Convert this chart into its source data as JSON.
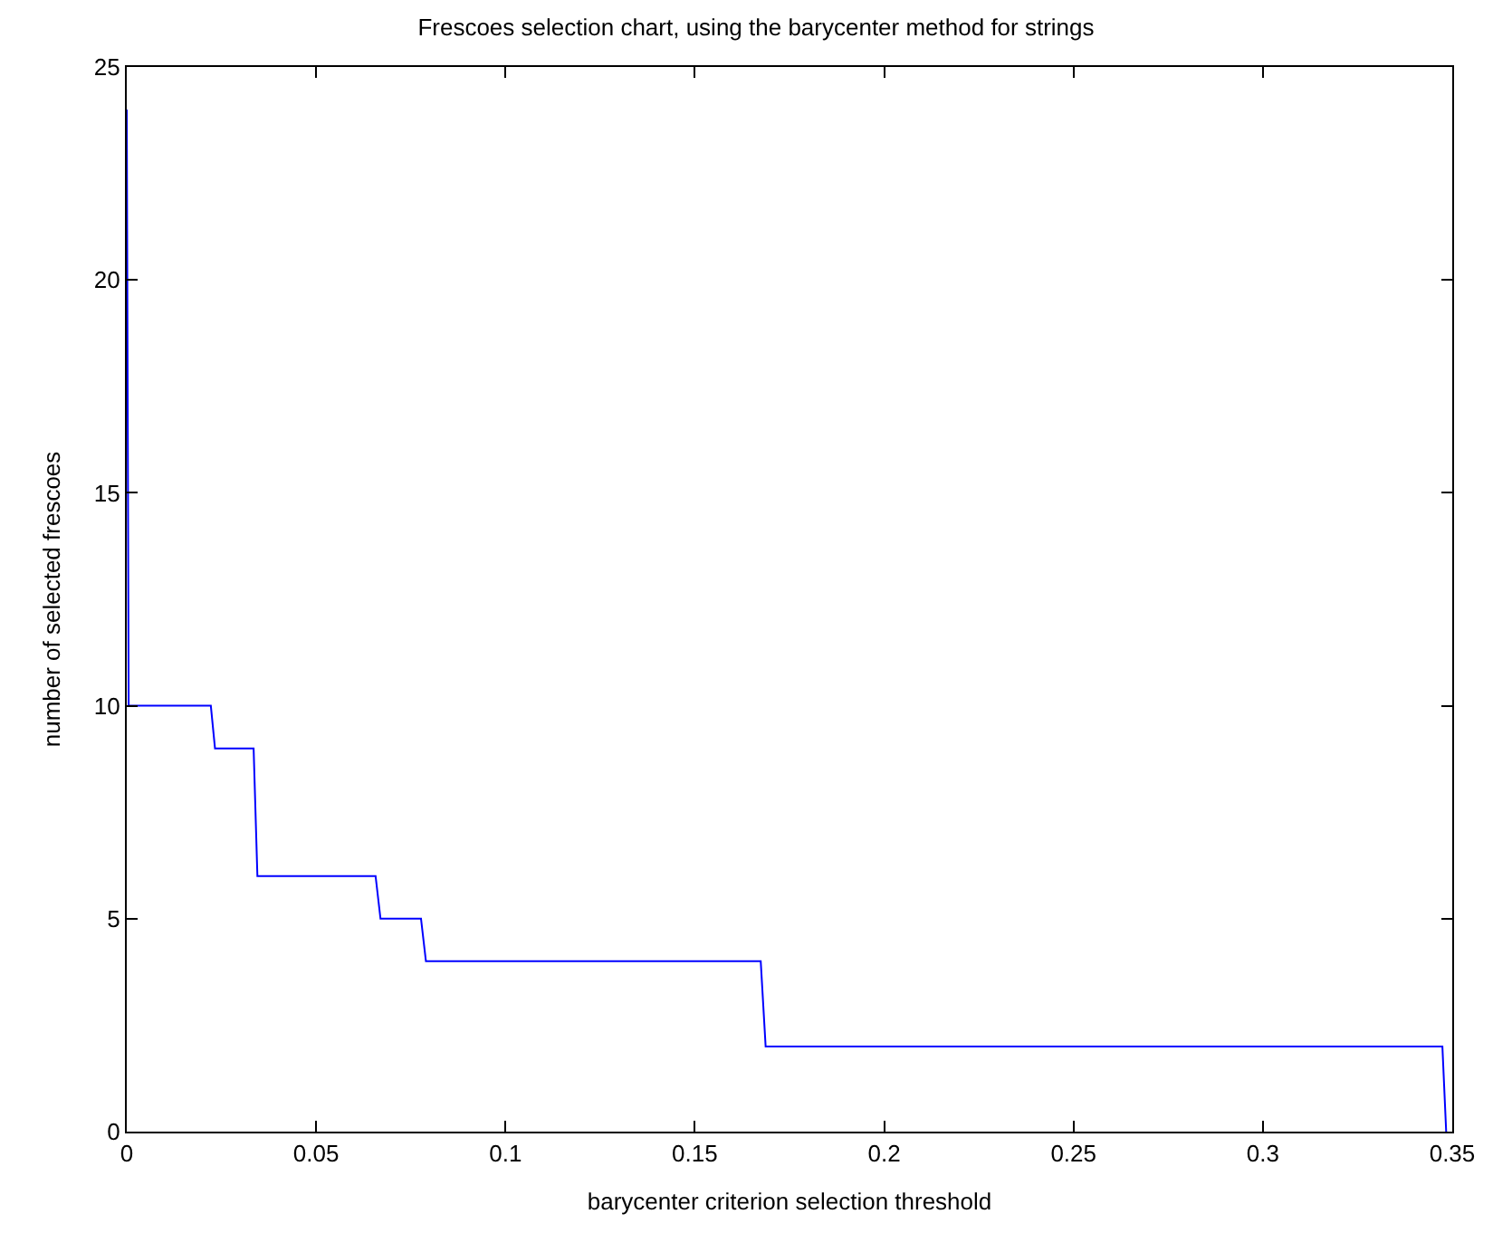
{
  "chart_data": {
    "type": "line",
    "title": "Frescoes selection chart, using the barycenter method for strings",
    "xlabel": "barycenter criterion selection threshold",
    "ylabel": "number of selected frescoes",
    "series": [
      {
        "color": "#0000ff",
        "x": [
          0,
          0.0005,
          0.0222,
          0.0233,
          0.0335,
          0.0345,
          0.0657,
          0.067,
          0.0777,
          0.079,
          0.1674,
          0.1687,
          0.3474,
          0.3484
        ],
        "values": [
          24,
          10,
          10,
          9,
          9,
          6,
          6,
          5,
          5,
          4,
          4,
          2,
          2,
          0
        ]
      }
    ],
    "xlim": [
      0,
      0.35
    ],
    "xticks": [
      0,
      0.05,
      0.1,
      0.15,
      0.2,
      0.25,
      0.3,
      0.35
    ],
    "ylim": [
      0,
      25
    ],
    "yticks": [
      0,
      5,
      10,
      15,
      20,
      25
    ],
    "marker": "none",
    "line_style": "solid"
  }
}
